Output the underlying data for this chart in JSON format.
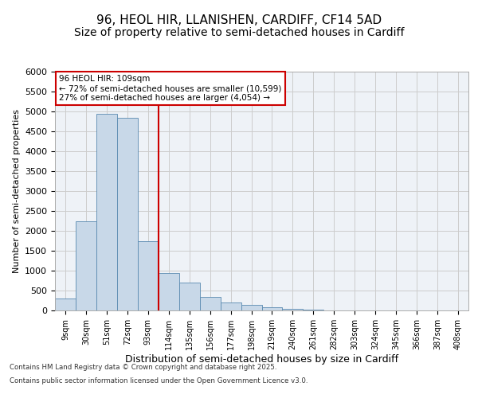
{
  "title1": "96, HEOL HIR, LLANISHEN, CARDIFF, CF14 5AD",
  "title2": "Size of property relative to semi-detached houses in Cardiff",
  "xlabel": "Distribution of semi-detached houses by size in Cardiff",
  "ylabel": "Number of semi-detached properties",
  "annotation_text_line1": "96 HEOL HIR: 109sqm",
  "annotation_text_line2": "← 72% of semi-detached houses are smaller (10,599)",
  "annotation_text_line3": "27% of semi-detached houses are larger (4,054) →",
  "footer1": "Contains HM Land Registry data © Crown copyright and database right 2025.",
  "footer2": "Contains public sector information licensed under the Open Government Licence v3.0.",
  "bin_labels": [
    "9sqm",
    "30sqm",
    "51sqm",
    "72sqm",
    "93sqm",
    "114sqm",
    "135sqm",
    "156sqm",
    "177sqm",
    "198sqm",
    "219sqm",
    "240sqm",
    "261sqm",
    "282sqm",
    "303sqm",
    "324sqm",
    "345sqm",
    "366sqm",
    "387sqm",
    "408sqm"
  ],
  "bar_values": [
    300,
    2250,
    4950,
    4850,
    1750,
    950,
    700,
    350,
    200,
    150,
    80,
    50,
    20,
    10,
    5,
    2,
    2,
    1,
    1,
    1
  ],
  "bar_color": "#c8d8e8",
  "bar_edge_color": "#5a8ab0",
  "redline_color": "#cc0000",
  "redline_idx": 5,
  "ylim": [
    0,
    6000
  ],
  "yticks": [
    0,
    500,
    1000,
    1500,
    2000,
    2500,
    3000,
    3500,
    4000,
    4500,
    5000,
    5500,
    6000
  ],
  "grid_color": "#cccccc",
  "bg_color": "#eef2f7",
  "annotation_box_color": "#cc0000",
  "title_fontsize": 11,
  "subtitle_fontsize": 10
}
